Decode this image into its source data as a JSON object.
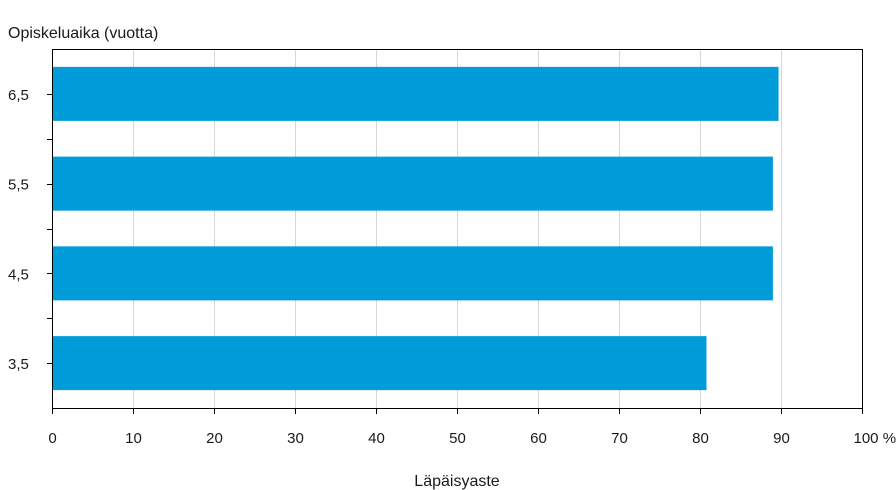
{
  "chart_data": {
    "type": "bar",
    "orientation": "horizontal",
    "ylabel": "Opiskeluaika (vuotta)",
    "xlabel": "Läpäisyaste",
    "x_unit": "%",
    "categories": [
      "6,5",
      "5,5",
      "4,5",
      "3,5"
    ],
    "values": [
      89.7,
      89.0,
      89.0,
      80.8
    ],
    "xlim": [
      0,
      100
    ],
    "x_ticks": [
      0,
      10,
      20,
      30,
      40,
      50,
      60,
      70,
      80,
      90,
      100
    ],
    "x_tick_labels": [
      "0",
      "10",
      "20",
      "30",
      "40",
      "50",
      "60",
      "70",
      "80",
      "90",
      "100 %"
    ],
    "grid": "vertical",
    "legend": "none",
    "bar_color": "#009cd9"
  }
}
